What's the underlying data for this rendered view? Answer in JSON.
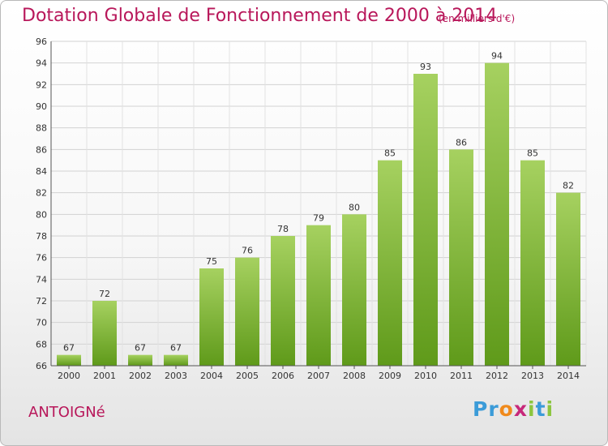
{
  "header": {
    "title": "Dotation Globale de Fonctionnement de 2000 à 2014",
    "unit": "(en milliers d'€)"
  },
  "footer": {
    "commune": "ANTOIGNé",
    "logo_letters": [
      "P",
      "r",
      "o",
      "x",
      "i",
      "t",
      "i"
    ],
    "logo_colors": [
      "#3b9bd8",
      "#3b9bd8",
      "#f08a1c",
      "#c7287a",
      "#8cc63f",
      "#3b9bd8",
      "#8cc63f"
    ]
  },
  "chart_data": {
    "type": "bar",
    "categories": [
      "2000",
      "2001",
      "2002",
      "2003",
      "2004",
      "2005",
      "2006",
      "2007",
      "2008",
      "2009",
      "2010",
      "2011",
      "2012",
      "2013",
      "2014"
    ],
    "values": [
      67,
      72,
      67,
      67,
      75,
      76,
      78,
      79,
      80,
      85,
      93,
      86,
      94,
      85,
      82
    ],
    "title": "Dotation Globale de Fonctionnement de 2000 à 2014",
    "ylim": [
      66,
      96
    ],
    "yticks": [
      66,
      68,
      70,
      72,
      74,
      76,
      78,
      80,
      82,
      84,
      86,
      88,
      90,
      92,
      94,
      96
    ],
    "grid": true,
    "bar_color_light": "#a6d160",
    "bar_color_dark": "#5f9a1a"
  }
}
